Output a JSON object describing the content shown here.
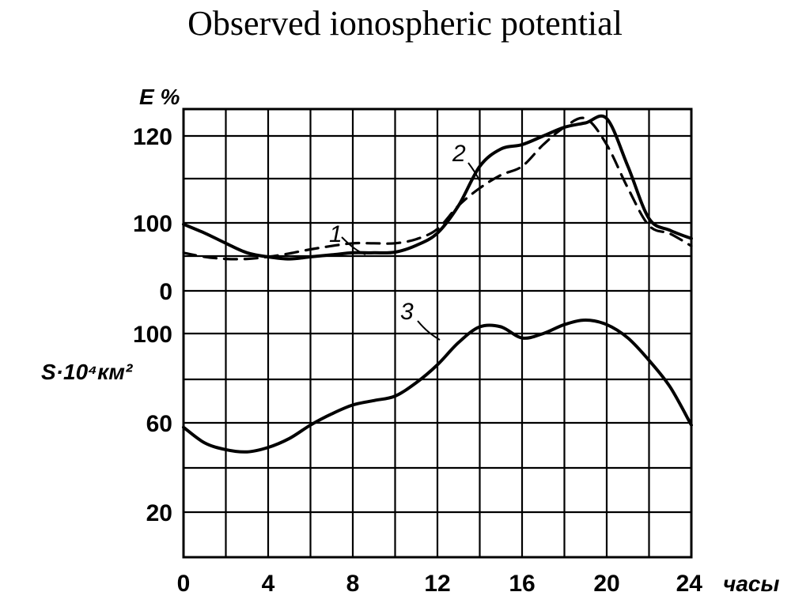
{
  "title": "Observed ionospheric potential",
  "chart_data": [
    {
      "type": "line",
      "xlabel": "часы",
      "ylabel": "E %",
      "x_ticks": [
        "0",
        "4",
        "8",
        "12",
        "16",
        "20",
        "24"
      ],
      "y_ticks": [
        "0",
        "100",
        "120"
      ],
      "xlim": [
        0,
        24
      ],
      "grid": true,
      "series": [
        {
          "name": "1",
          "style": "dashed",
          "x": [
            0,
            1,
            2,
            3,
            4,
            5,
            6,
            7,
            8,
            9,
            10,
            11,
            12,
            13,
            14,
            15,
            16,
            17,
            18,
            19,
            20,
            21,
            22,
            23,
            24
          ],
          "y": [
            56,
            50,
            47,
            47,
            50,
            55,
            61,
            66,
            70,
            70,
            70,
            76,
            91,
            104,
            108,
            111,
            113,
            118,
            122,
            124,
            118,
            108,
            96,
            84,
            66
          ]
        },
        {
          "name": "2",
          "style": "solid",
          "x": [
            0,
            1,
            2,
            3,
            4,
            5,
            6,
            7,
            8,
            9,
            10,
            11,
            12,
            13,
            14,
            15,
            16,
            17,
            18,
            19,
            20,
            21,
            22,
            23,
            24
          ],
          "y": [
            98,
            85,
            70,
            56,
            50,
            47,
            50,
            53,
            56,
            56,
            57,
            67,
            85,
            104,
            113,
            117,
            118,
            120,
            122,
            123,
            124,
            113,
            101,
            89,
            77
          ]
        }
      ]
    },
    {
      "type": "line",
      "ylabel": "S·10⁴км²",
      "x_ticks": [
        "0",
        "4",
        "8",
        "12",
        "16",
        "20",
        "24"
      ],
      "y_ticks": [
        "20",
        "60",
        "100"
      ],
      "xlim": [
        0,
        24
      ],
      "grid": true,
      "series": [
        {
          "name": "3",
          "style": "solid",
          "x": [
            0,
            1,
            2,
            3,
            4,
            5,
            6,
            7,
            8,
            9,
            10,
            11,
            12,
            13,
            14,
            15,
            16,
            17,
            18,
            19,
            20,
            21,
            22,
            23,
            24
          ],
          "y": [
            58,
            51,
            48,
            47,
            49,
            53,
            59,
            64,
            68,
            70,
            72,
            78,
            86,
            96,
            103,
            103,
            98,
            100,
            104,
            106,
            104,
            98,
            88,
            76,
            59
          ]
        }
      ]
    }
  ]
}
